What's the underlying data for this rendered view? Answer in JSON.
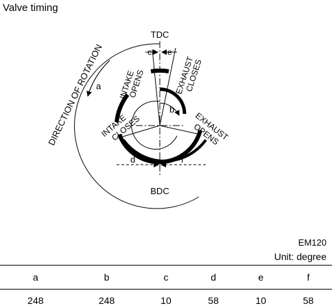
{
  "title": "Valve timing",
  "diagram": {
    "tdc": "TDC",
    "bdc": "BDC",
    "direction": "DIRECTION OF ROTATION",
    "intake_opens": [
      "INTAKE",
      "OPENS"
    ],
    "intake_closes": [
      "INTAKE",
      "CLOSES"
    ],
    "exhaust_opens": [
      "EXHAUST",
      "OPENS"
    ],
    "exhaust_closes": [
      "EXHAUST",
      "CLOSES"
    ],
    "letters": {
      "a": "a",
      "b": "b",
      "c": "c",
      "d": "d",
      "e": "e",
      "f": "f"
    }
  },
  "code": "EM120",
  "unit": "Unit: degree",
  "table": {
    "headers": [
      "a",
      "b",
      "c",
      "d",
      "e",
      "f"
    ],
    "values": [
      "248",
      "248",
      "10",
      "58",
      "10",
      "58"
    ]
  }
}
